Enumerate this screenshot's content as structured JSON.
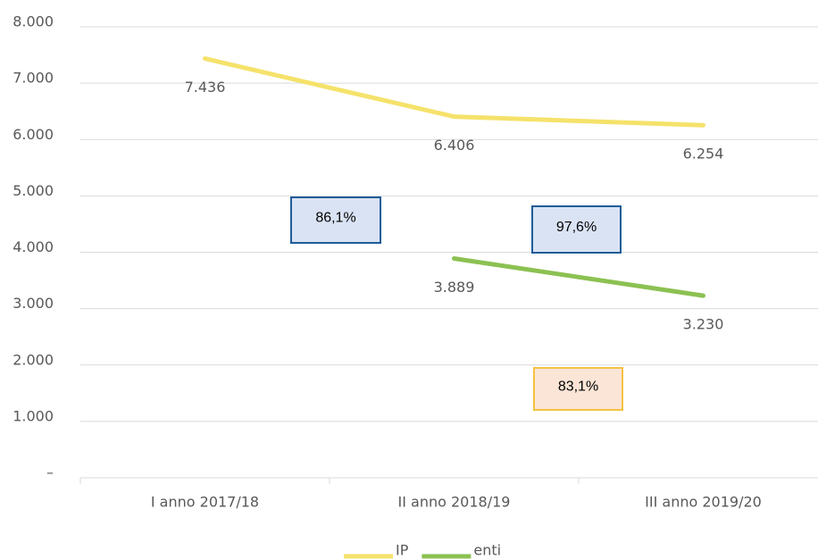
{
  "chart_data": {
    "type": "line",
    "categories": [
      "I anno 2017/18",
      "II anno 2018/19",
      "III anno 2019/20"
    ],
    "series": [
      {
        "name": "IP",
        "color": "#f5e26b",
        "values": [
          7436,
          6406,
          6254
        ],
        "value_labels": [
          "7.436",
          "6.406",
          "6.254"
        ]
      },
      {
        "name": "enti",
        "color": "#8cc152",
        "values": [
          null,
          3889,
          3230
        ],
        "value_labels": [
          null,
          "3.889",
          "3.230"
        ]
      }
    ],
    "ylim": [
      0,
      8000
    ],
    "yticks": [
      {
        "value": 0,
        "label": "–"
      },
      {
        "value": 1000,
        "label": "1.000"
      },
      {
        "value": 2000,
        "label": "2.000"
      },
      {
        "value": 3000,
        "label": "3.000"
      },
      {
        "value": 4000,
        "label": "4.000"
      },
      {
        "value": 5000,
        "label": "5.000"
      },
      {
        "value": 6000,
        "label": "6.000"
      },
      {
        "value": 7000,
        "label": "7.000"
      },
      {
        "value": 8000,
        "label": "8.000"
      }
    ],
    "grid": true,
    "legend": "bottom",
    "annotations": [
      "86,1%",
      "97,6%",
      "83,1%"
    ]
  }
}
